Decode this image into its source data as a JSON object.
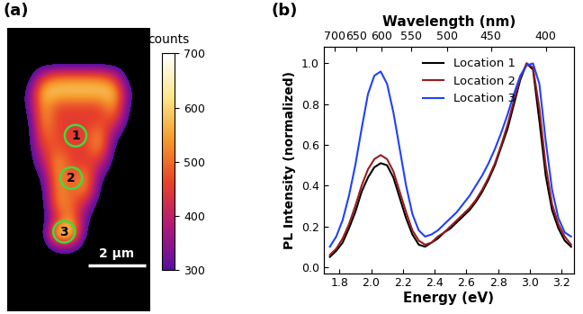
{
  "chart_data": [
    {
      "type": "heatmap",
      "panel_label": "(a)",
      "xlim": [
        0,
        5
      ],
      "ylim": [
        10,
        0
      ],
      "tick_labels": false,
      "cells": [
        [
          250,
          250,
          250,
          250,
          250,
          250,
          250,
          250,
          250,
          250
        ],
        [
          250,
          250,
          250,
          250,
          250,
          250,
          250,
          250,
          250,
          250
        ],
        [
          250,
          250,
          250,
          250,
          250,
          250,
          250,
          250,
          250,
          250
        ],
        [
          250,
          250,
          450,
          520,
          520,
          520,
          520,
          450,
          250,
          250
        ],
        [
          250,
          300,
          600,
          600,
          600,
          600,
          600,
          600,
          300,
          250
        ],
        [
          250,
          300,
          570,
          460,
          460,
          460,
          460,
          570,
          280,
          250
        ],
        [
          250,
          260,
          560,
          450,
          450,
          450,
          450,
          480,
          260,
          250
        ],
        [
          250,
          250,
          520,
          460,
          450,
          450,
          550,
          330,
          250,
          250
        ],
        [
          250,
          250,
          460,
          480,
          450,
          450,
          560,
          260,
          250,
          250
        ],
        [
          250,
          250,
          380,
          560,
          450,
          450,
          430,
          250,
          250,
          250
        ],
        [
          250,
          250,
          300,
          560,
          460,
          560,
          300,
          250,
          250,
          250
        ],
        [
          250,
          250,
          260,
          560,
          470,
          550,
          260,
          250,
          250,
          250
        ],
        [
          250,
          250,
          250,
          540,
          500,
          380,
          250,
          250,
          250,
          250
        ],
        [
          250,
          250,
          250,
          430,
          560,
          300,
          250,
          250,
          250,
          250
        ],
        [
          250,
          250,
          250,
          650,
          650,
          260,
          250,
          250,
          250,
          250
        ],
        [
          250,
          250,
          250,
          330,
          330,
          250,
          250,
          250,
          250,
          250
        ],
        [
          250,
          250,
          250,
          250,
          250,
          250,
          250,
          250,
          250,
          250
        ],
        [
          250,
          250,
          250,
          250,
          250,
          250,
          250,
          250,
          250,
          250
        ],
        [
          250,
          250,
          250,
          250,
          250,
          250,
          250,
          250,
          250,
          250
        ],
        [
          250,
          250,
          250,
          250,
          250,
          250,
          250,
          250,
          250,
          250
        ]
      ],
      "colorbar": {
        "label": "counts",
        "range": [
          300,
          700
        ],
        "ticks": [
          300,
          400,
          500,
          600,
          700
        ]
      },
      "annotations": [
        {
          "text": "1",
          "x": 2.4,
          "y": 3.8
        },
        {
          "text": "2",
          "x": 2.25,
          "y": 5.3
        },
        {
          "text": "3",
          "x": 2.0,
          "y": 7.2
        }
      ],
      "scale_bar": {
        "length": 2,
        "label": "2 µm"
      }
    },
    {
      "type": "line",
      "panel_label": "(b)",
      "x_label": "Energy (eV)",
      "y_label": "PL Intensity (normalized)",
      "x2_label": "Wavelength (nm)",
      "xlim": [
        1.7,
        3.28
      ],
      "xticks": [
        1.8,
        2.0,
        2.2,
        2.4,
        2.6,
        2.8,
        3.0,
        3.2
      ],
      "x2ticks": [
        {
          "value": 1.771,
          "label": "700"
        },
        {
          "value": 1.907,
          "label": "650"
        },
        {
          "value": 2.066,
          "label": "600"
        },
        {
          "value": 2.254,
          "label": "550"
        },
        {
          "value": 2.48,
          "label": "500"
        },
        {
          "value": 2.755,
          "label": "450"
        },
        {
          "value": 3.1,
          "label": "400"
        }
      ],
      "ylim": [
        -0.03,
        1.08
      ],
      "yticks": [
        0.0,
        0.2,
        0.4,
        0.6,
        0.8,
        1.0
      ],
      "legend": "upper center",
      "x": [
        1.74,
        1.78,
        1.82,
        1.86,
        1.9,
        1.94,
        1.98,
        2.02,
        2.06,
        2.1,
        2.14,
        2.18,
        2.22,
        2.26,
        2.3,
        2.34,
        2.38,
        2.42,
        2.46,
        2.5,
        2.54,
        2.58,
        2.62,
        2.66,
        2.7,
        2.74,
        2.78,
        2.82,
        2.86,
        2.9,
        2.94,
        2.98,
        3.02,
        3.06,
        3.1,
        3.14,
        3.18,
        3.22,
        3.26
      ],
      "series": [
        {
          "name": "Location 1",
          "color": "#000000",
          "values": [
            0.05,
            0.08,
            0.12,
            0.19,
            0.27,
            0.37,
            0.44,
            0.49,
            0.51,
            0.5,
            0.44,
            0.34,
            0.24,
            0.16,
            0.11,
            0.1,
            0.12,
            0.14,
            0.17,
            0.19,
            0.22,
            0.25,
            0.28,
            0.32,
            0.37,
            0.43,
            0.5,
            0.59,
            0.68,
            0.8,
            0.92,
            1.0,
            0.97,
            0.72,
            0.45,
            0.28,
            0.19,
            0.13,
            0.1
          ]
        },
        {
          "name": "Location 2",
          "color": "#9b1c1c",
          "values": [
            0.06,
            0.09,
            0.14,
            0.21,
            0.3,
            0.4,
            0.48,
            0.53,
            0.55,
            0.53,
            0.47,
            0.37,
            0.27,
            0.18,
            0.13,
            0.11,
            0.12,
            0.15,
            0.17,
            0.2,
            0.23,
            0.26,
            0.29,
            0.33,
            0.38,
            0.44,
            0.51,
            0.6,
            0.7,
            0.82,
            0.93,
            1.0,
            0.98,
            0.78,
            0.5,
            0.31,
            0.21,
            0.15,
            0.11
          ]
        },
        {
          "name": "Location 3",
          "color": "#2040ff",
          "values": [
            0.1,
            0.15,
            0.23,
            0.35,
            0.5,
            0.68,
            0.85,
            0.94,
            0.96,
            0.9,
            0.76,
            0.58,
            0.4,
            0.26,
            0.18,
            0.15,
            0.16,
            0.18,
            0.21,
            0.24,
            0.27,
            0.31,
            0.35,
            0.4,
            0.45,
            0.51,
            0.58,
            0.66,
            0.75,
            0.85,
            0.94,
            0.99,
            1.0,
            0.9,
            0.62,
            0.38,
            0.24,
            0.17,
            0.15
          ]
        }
      ]
    }
  ]
}
